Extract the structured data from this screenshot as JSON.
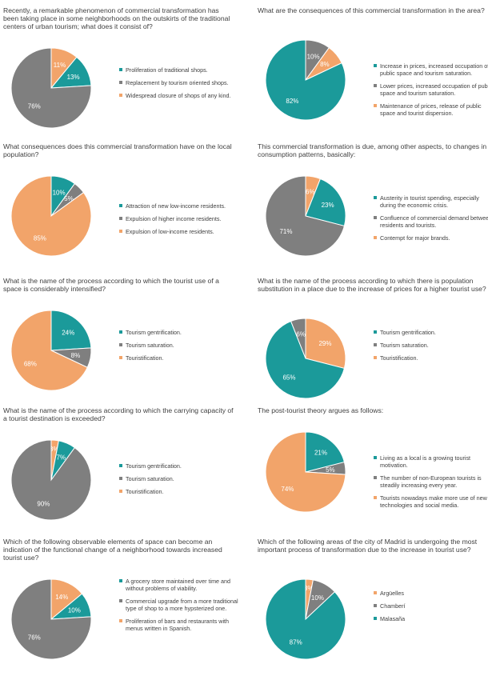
{
  "colors": {
    "teal": "#1b9a9a",
    "gray": "#7f7f7f",
    "orange": "#f2a46a"
  },
  "chart_data": [
    {
      "type": "pie",
      "title": "Recently, a remarkable phenomenon of commercial transformation has been taking place in some neighborhoods on the outskirts of the traditional centers of urban tourism; what does it consist of?",
      "slices": [
        {
          "label": "Proliferation of traditional shops.",
          "value": 13,
          "color": "teal"
        },
        {
          "label": "Replacement by tourism oriented shops.",
          "value": 76,
          "color": "gray"
        },
        {
          "label": "Widespread closure of shops of any kind.",
          "value": 11,
          "color": "orange"
        }
      ]
    },
    {
      "type": "pie",
      "title": "What are the consequences of this commercial transformation in the area?",
      "slices": [
        {
          "label": "Increase in prices, increased occupation of public space and tourism saturation.",
          "value": 82,
          "color": "teal"
        },
        {
          "label": "Lower prices, increased occupation of public space and tourism saturation.",
          "value": 10,
          "color": "gray"
        },
        {
          "label": "Maintenance of prices, release of public space and tourist dispersion.",
          "value": 8,
          "color": "orange"
        }
      ]
    },
    {
      "type": "pie",
      "title": "What consequences does this commercial transformation have on the local population?",
      "slices": [
        {
          "label": "Attraction of new low-income residents.",
          "value": 10,
          "color": "teal"
        },
        {
          "label": "Expulsion of higher income residents.",
          "value": 5,
          "color": "gray"
        },
        {
          "label": "Expulsion of low-income residents.",
          "value": 85,
          "color": "orange"
        }
      ]
    },
    {
      "type": "pie",
      "title": "This commercial transformation is due, among other aspects, to changes in consumption patterns, basically:",
      "slices": [
        {
          "label": "Austerity in tourist spending, especially during the economic crisis.",
          "value": 23,
          "color": "teal"
        },
        {
          "label": "Confluence of commercial demand between residents and tourists.",
          "value": 71,
          "color": "gray"
        },
        {
          "label": "Contempt for major brands.",
          "value": 6,
          "color": "orange"
        }
      ]
    },
    {
      "type": "pie",
      "title": "What is the name of the process according to which the tourist use of a space is considerably intensified?",
      "slices": [
        {
          "label": "Tourism gentrification.",
          "value": 24,
          "color": "teal"
        },
        {
          "label": "Tourism saturation.",
          "value": 8,
          "color": "gray"
        },
        {
          "label": "Touristification.",
          "value": 68,
          "color": "orange"
        }
      ]
    },
    {
      "type": "pie",
      "title": "What is the name of the process according to which there is population substitution in a place due to the increase of prices for a higher tourist use?",
      "slices": [
        {
          "label": "Tourism gentrification.",
          "value": 65,
          "color": "teal"
        },
        {
          "label": "Tourism saturation.",
          "value": 6,
          "color": "gray"
        },
        {
          "label": "Touristification.",
          "value": 29,
          "color": "orange"
        }
      ]
    },
    {
      "type": "pie",
      "title": "What is the name of the process according to which the carrying capacity of a tourist destination is exceeded?",
      "slices": [
        {
          "label": "Tourism gentrification.",
          "value": 7,
          "color": "teal"
        },
        {
          "label": "Tourism saturation.",
          "value": 90,
          "color": "gray"
        },
        {
          "label": "Touristification.",
          "value": 3,
          "color": "orange"
        }
      ]
    },
    {
      "type": "pie",
      "title": "The post-tourist theory argues as follows:",
      "slices": [
        {
          "label": "Living as a local is a growing tourist motivation.",
          "value": 21,
          "color": "teal"
        },
        {
          "label": "The number of non-European tourists is steadily increasing every year.",
          "value": 5,
          "color": "gray"
        },
        {
          "label": "Tourists nowadays make more use of new technologies and social media.",
          "value": 74,
          "color": "orange"
        }
      ]
    },
    {
      "type": "pie",
      "title": "Which of the following observable elements of space can become an indication of the functional change of a neighborhood towards increased tourist use?",
      "slices": [
        {
          "label": "A grocery store maintained over time and without problems of viability.",
          "value": 10,
          "color": "teal"
        },
        {
          "label": "Commercial upgrade from a more traditional type of shop to a more hypsterized one.",
          "value": 76,
          "color": "gray"
        },
        {
          "label": "Proliferation of bars and restaurants with menus written in Spanish.",
          "value": 14,
          "color": "orange"
        }
      ]
    },
    {
      "type": "pie",
      "title": "Which of the following areas of the city of Madrid is undergoing the most important process of transformation due to the increase in tourist use?",
      "slices": [
        {
          "label": "Argüelles",
          "value": 3,
          "color": "orange"
        },
        {
          "label": "Chamberí",
          "value": 10,
          "color": "gray"
        },
        {
          "label": "Malasaña",
          "value": 87,
          "color": "teal"
        }
      ]
    }
  ]
}
